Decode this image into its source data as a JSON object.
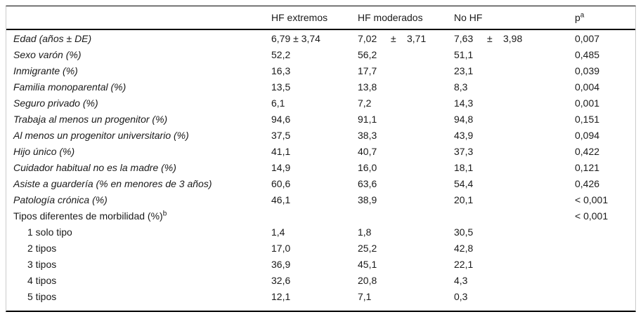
{
  "table": {
    "header": {
      "label": "",
      "hf_extremos": "HF extremos",
      "hf_moderados": "HF moderados",
      "no_hf": "No HF",
      "p": "p",
      "p_sup": "a"
    },
    "age_row": {
      "label": "Edad (años ± DE)",
      "extremos": "6,79 ± 3,74",
      "moderados_mean": "7,02",
      "moderados_pm": "±",
      "moderados_sd": "3,71",
      "no_hf_mean": "7,63",
      "no_hf_pm": "±",
      "no_hf_sd": "3,98",
      "p": "0,007"
    },
    "rows": [
      {
        "label": "Sexo varón (%)",
        "extremos": "52,2",
        "moderados": "56,2",
        "no_hf": "51,1",
        "p": "0,485"
      },
      {
        "label": "Inmigrante (%)",
        "extremos": "16,3",
        "moderados": "17,7",
        "no_hf": "23,1",
        "p": "0,039"
      },
      {
        "label": "Familia monoparental (%)",
        "extremos": "13,5",
        "moderados": "13,8",
        "no_hf": "8,3",
        "p": "0,004"
      },
      {
        "label": "Seguro privado (%)",
        "extremos": "6,1",
        "moderados": "7,2",
        "no_hf": "14,3",
        "p": "0,001"
      },
      {
        "label": "Trabaja al menos un progenitor (%)",
        "extremos": "94,6",
        "moderados": "91,1",
        "no_hf": "94,8",
        "p": "0,151"
      },
      {
        "label": "Al menos un progenitor universitario (%)",
        "extremos": "37,5",
        "moderados": "38,3",
        "no_hf": "43,9",
        "p": "0,094"
      },
      {
        "label": "Hijo único (%)",
        "extremos": "41,1",
        "moderados": "40,7",
        "no_hf": "37,3",
        "p": "0,422"
      },
      {
        "label": "Cuidador habitual no es la madre (%)",
        "extremos": "14,9",
        "moderados": "16,0",
        "no_hf": "18,1",
        "p": "0,121"
      },
      {
        "label": "Asiste a guardería (% en menores de 3 años)",
        "extremos": "60,6",
        "moderados": "63,6",
        "no_hf": "54,4",
        "p": "0,426"
      },
      {
        "label": "Patología crónica (%)",
        "extremos": "46,1",
        "moderados": "38,9",
        "no_hf": "20,1",
        "p": "< 0,001"
      },
      {
        "label": "Tipos diferentes de morbilidad (%)",
        "sup": "b",
        "extremos": "",
        "moderados": "",
        "no_hf": "",
        "p": "< 0,001"
      },
      {
        "label": "1 solo tipo",
        "extremos": "1,4",
        "moderados": "1,8",
        "no_hf": "30,5",
        "p": ""
      },
      {
        "label": "2 tipos",
        "extremos": "17,0",
        "moderados": "25,2",
        "no_hf": "42,8",
        "p": ""
      },
      {
        "label": "3 tipos",
        "extremos": "36,9",
        "moderados": "45,1",
        "no_hf": "22,1",
        "p": ""
      },
      {
        "label": "4 tipos",
        "extremos": "32,6",
        "moderados": "20,8",
        "no_hf": "4,3",
        "p": ""
      },
      {
        "label": "5 tipos",
        "extremos": "12,1",
        "moderados": "7,1",
        "no_hf": "0,3",
        "p": ""
      }
    ]
  }
}
